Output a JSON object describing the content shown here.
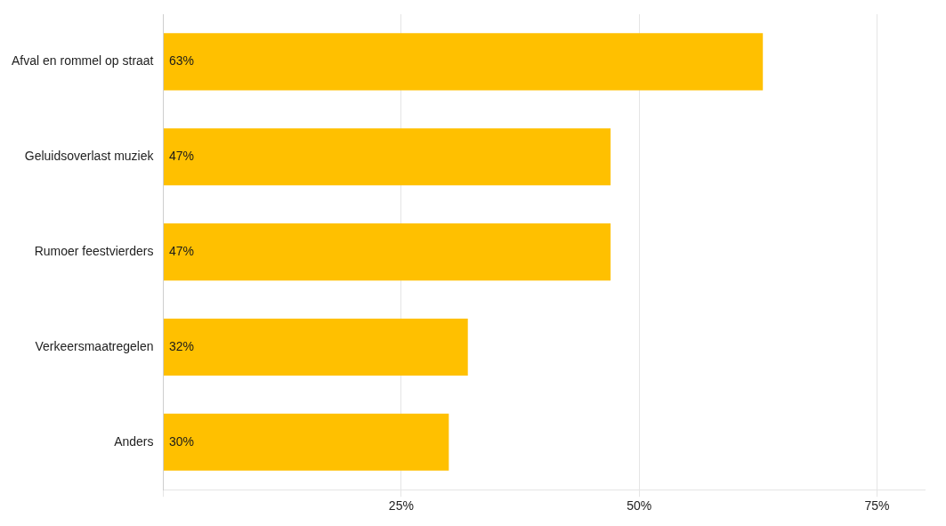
{
  "chart_data": {
    "type": "bar",
    "orientation": "horizontal",
    "categories": [
      "Anders",
      "Verkeersmaatregelen",
      "Rumoer feestvierders",
      "Geluidsoverlast muziek",
      "Afval en rommel op straat"
    ],
    "values": [
      30,
      32,
      47,
      47,
      63
    ],
    "value_labels": [
      "30%",
      "32%",
      "47%",
      "47%",
      "63%"
    ],
    "data_labels": true,
    "color": "#FFC000",
    "xlim": [
      0,
      80
    ],
    "xticks": [
      {
        "value": 0,
        "label": null
      },
      {
        "value": 25,
        "label": "25%"
      },
      {
        "value": 50,
        "label": "50%"
      },
      {
        "value": 75,
        "label": "75%"
      }
    ],
    "grid": true
  }
}
